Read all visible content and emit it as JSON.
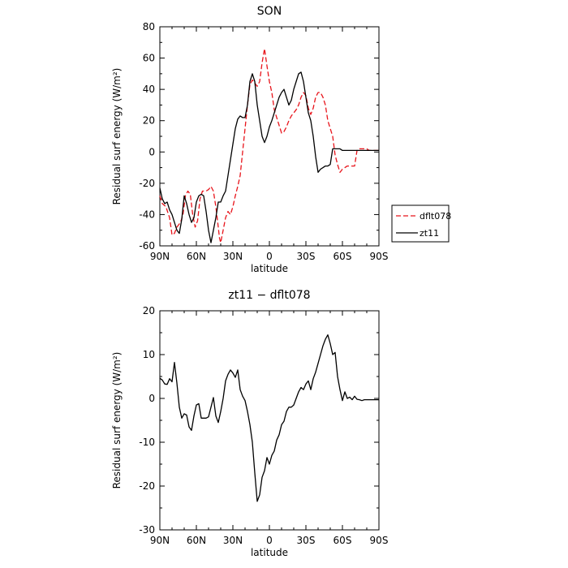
{
  "chart_data": [
    {
      "type": "line",
      "title": "SON",
      "xlabel": "latitude",
      "ylabel": "Residual surf energy (W/m²)",
      "x_ticks": [
        "90N",
        "60N",
        "30N",
        "0",
        "30S",
        "60S",
        "90S"
      ],
      "x_tick_values": [
        90,
        60,
        30,
        0,
        -30,
        -60,
        -90
      ],
      "xlim": [
        90,
        -90
      ],
      "ylim": [
        -60,
        80
      ],
      "y_ticks": [
        -60,
        -40,
        -20,
        0,
        20,
        40,
        60,
        80
      ],
      "legend": {
        "placement": "right",
        "entries": [
          "dflt078",
          "zt11"
        ]
      },
      "series": [
        {
          "name": "dflt078",
          "color": "#e8141b",
          "style": "dashed",
          "x": [
            90,
            88,
            85,
            82,
            80,
            78,
            76,
            73,
            71,
            69,
            67,
            65,
            63,
            61,
            59,
            57,
            55,
            52,
            50,
            48,
            46,
            44,
            42,
            41,
            40,
            38,
            36,
            34,
            32,
            30,
            28,
            26,
            24,
            22,
            20,
            18,
            16,
            14,
            12,
            10,
            8,
            6,
            4,
            2,
            0,
            -2,
            -4,
            -6,
            -8,
            -10,
            -12,
            -14,
            -16,
            -18,
            -20,
            -22,
            -24,
            -26,
            -28,
            -30,
            -32,
            -34,
            -36,
            -38,
            -40,
            -42,
            -44,
            -46,
            -48,
            -50,
            -52,
            -54,
            -56,
            -58,
            -60,
            -62,
            -64,
            -66,
            -68,
            -70,
            -72,
            -74,
            -76,
            -78,
            -80,
            -82,
            -84,
            -86,
            -88,
            -90
          ],
          "y": [
            -28,
            -33,
            -35,
            -42,
            -53,
            -52,
            -48,
            -45,
            -40,
            -28,
            -25,
            -27,
            -40,
            -48,
            -44,
            -30,
            -25,
            -25,
            -24,
            -22,
            -25,
            -35,
            -48,
            -55,
            -58,
            -50,
            -42,
            -38,
            -40,
            -35,
            -28,
            -22,
            -15,
            0,
            15,
            30,
            43,
            46,
            44,
            42,
            45,
            57,
            66,
            55,
            45,
            38,
            27,
            22,
            17,
            12,
            13,
            16,
            20,
            23,
            25,
            27,
            30,
            35,
            38,
            36,
            28,
            24,
            28,
            35,
            38,
            38,
            35,
            30,
            20,
            15,
            10,
            -2,
            -8,
            -13,
            -11,
            -10,
            -9,
            -9,
            -9,
            -9,
            1,
            2,
            2,
            2,
            2,
            1,
            1,
            1,
            1,
            1
          ]
        },
        {
          "name": "zt11",
          "color": "#000000",
          "style": "solid",
          "x": [
            90,
            88,
            86,
            84,
            82,
            80,
            78,
            76,
            74,
            72,
            70,
            68,
            66,
            64,
            62,
            60,
            58,
            56,
            54,
            52,
            50,
            48,
            46,
            44,
            42,
            40,
            38,
            36,
            34,
            32,
            30,
            28,
            26,
            24,
            22,
            20,
            18,
            16,
            14,
            12,
            10,
            8,
            6,
            4,
            2,
            0,
            -2,
            -4,
            -6,
            -8,
            -10,
            -12,
            -14,
            -16,
            -18,
            -20,
            -22,
            -24,
            -26,
            -28,
            -30,
            -32,
            -34,
            -36,
            -38,
            -40,
            -42,
            -44,
            -46,
            -48,
            -50,
            -52,
            -54,
            -56,
            -58,
            -60,
            -62,
            -64,
            -66,
            -68,
            -70,
            -72,
            -74,
            -76,
            -78,
            -80,
            -82,
            -84,
            -86,
            -88,
            -90
          ],
          "y": [
            -23,
            -30,
            -33,
            -32,
            -37,
            -40,
            -45,
            -50,
            -52,
            -43,
            -28,
            -33,
            -40,
            -45,
            -42,
            -32,
            -28,
            -27,
            -28,
            -38,
            -50,
            -58,
            -50,
            -42,
            -32,
            -32,
            -28,
            -25,
            -15,
            -5,
            5,
            15,
            21,
            23,
            22,
            22,
            30,
            45,
            50,
            45,
            30,
            20,
            10,
            6,
            10,
            16,
            20,
            25,
            30,
            35,
            38,
            40,
            35,
            30,
            33,
            40,
            45,
            50,
            51,
            45,
            35,
            25,
            20,
            10,
            -3,
            -13,
            -11,
            -10,
            -9,
            -9,
            -8,
            2,
            2,
            2,
            2,
            1,
            1,
            1,
            1,
            1,
            1,
            1,
            1,
            1,
            1,
            1,
            1,
            1,
            1,
            1,
            1
          ]
        }
      ]
    },
    {
      "type": "line",
      "title": "zt11 − dflt078",
      "xlabel": "latitude",
      "ylabel": "Residual surf energy (W/m²)",
      "x_ticks": [
        "90N",
        "60N",
        "30N",
        "0",
        "30S",
        "60S",
        "90S"
      ],
      "x_tick_values": [
        90,
        60,
        30,
        0,
        -30,
        -60,
        -90
      ],
      "xlim": [
        90,
        -90
      ],
      "ylim": [
        -30,
        20
      ],
      "y_ticks": [
        -30,
        -20,
        -10,
        0,
        10,
        20
      ],
      "series": [
        {
          "color": "#000000",
          "style": "solid",
          "x": [
            90,
            88,
            86,
            84,
            82,
            80,
            78,
            76,
            74,
            72,
            70,
            68,
            66,
            64,
            62,
            60,
            58,
            56,
            54,
            52,
            50,
            48,
            46,
            44,
            42,
            40,
            38,
            36,
            34,
            32,
            30,
            28,
            26,
            24,
            22,
            20,
            18,
            16,
            14,
            12,
            10,
            8,
            6,
            4,
            2,
            0,
            -2,
            -4,
            -6,
            -8,
            -10,
            -12,
            -14,
            -16,
            -18,
            -20,
            -22,
            -24,
            -26,
            -28,
            -30,
            -32,
            -34,
            -36,
            -38,
            -40,
            -42,
            -44,
            -46,
            -48,
            -50,
            -52,
            -54,
            -56,
            -58,
            -60,
            -62,
            -64,
            -66,
            -68,
            -70,
            -72,
            -74,
            -76,
            -78,
            -80,
            -82,
            -84,
            -86,
            -88,
            -90
          ],
          "y": [
            4.6,
            4.2,
            3.3,
            3.2,
            4.5,
            3.8,
            8.2,
            3.5,
            -2,
            -4.5,
            -3.5,
            -3.8,
            -6.5,
            -7.3,
            -4,
            -1.5,
            -1.2,
            -4.5,
            -4.5,
            -4.5,
            -4.2,
            -2,
            0.2,
            -4,
            -5.5,
            -3,
            0,
            4,
            5.5,
            6.5,
            5.8,
            4.8,
            6.5,
            2,
            0.5,
            -0.5,
            -3,
            -6,
            -10,
            -17,
            -23.5,
            -22,
            -18,
            -16.5,
            -13.5,
            -15,
            -13,
            -12,
            -9.5,
            -8.3,
            -6,
            -5.2,
            -3,
            -2,
            -2,
            -1.5,
            0,
            1.5,
            2.5,
            2,
            3.3,
            4,
            2,
            4.5,
            6,
            8,
            10,
            12,
            13.5,
            14.5,
            12.5,
            10,
            10.5,
            5,
            2,
            -0.5,
            1.5,
            0,
            0.3,
            -0.3,
            0.5,
            -0.2,
            -0.3,
            -0.5,
            -0.3,
            -0.3,
            -0.3,
            -0.3,
            -0.3,
            -0.3,
            -0.3
          ]
        }
      ]
    }
  ]
}
